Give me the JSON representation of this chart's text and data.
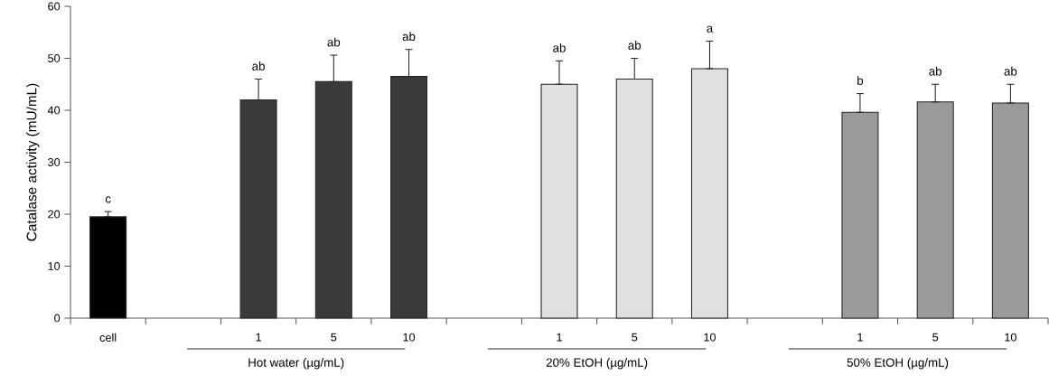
{
  "chart_data": {
    "type": "bar",
    "ylabel": "Catalase activity (mU/mL)",
    "categories": [
      "cell",
      null,
      "1",
      "5",
      "10",
      null,
      "1",
      "5",
      "10",
      null,
      "1",
      "5",
      "10"
    ],
    "values": [
      19.5,
      null,
      42,
      45.5,
      46.5,
      null,
      45,
      46,
      48,
      null,
      39.6,
      41.6,
      41.4
    ],
    "errors": [
      [
        19.5,
        20.5
      ],
      null,
      [
        42,
        46
      ],
      [
        45.5,
        50.6
      ],
      [
        46.5,
        51.7
      ],
      null,
      [
        45,
        49.5
      ],
      [
        46,
        50
      ],
      [
        48,
        53.3
      ],
      null,
      [
        39.6,
        43.2
      ],
      [
        41.6,
        45
      ],
      [
        41.4,
        45
      ]
    ],
    "value_labels": [
      "c",
      null,
      "ab",
      "ab",
      "ab",
      null,
      "ab",
      "ab",
      "a",
      null,
      "b",
      "ab",
      "ab"
    ],
    "colors": [
      "#000000",
      null,
      "#3a3a3a",
      "#3a3a3a",
      "#3a3a3a",
      null,
      "#e0e0e0",
      "#e0e0e0",
      "#e0e0e0",
      null,
      "#9a9a9a",
      "#9a9a9a",
      "#9a9a9a"
    ],
    "ylim": [
      0,
      60
    ],
    "yticks": [
      0,
      10,
      20,
      30,
      40,
      50,
      60
    ],
    "annotations": [
      "Hot water (µg/mL)",
      "20% EtOH (µg/mL)",
      "50% EtOH (µg/mL)"
    ]
  }
}
